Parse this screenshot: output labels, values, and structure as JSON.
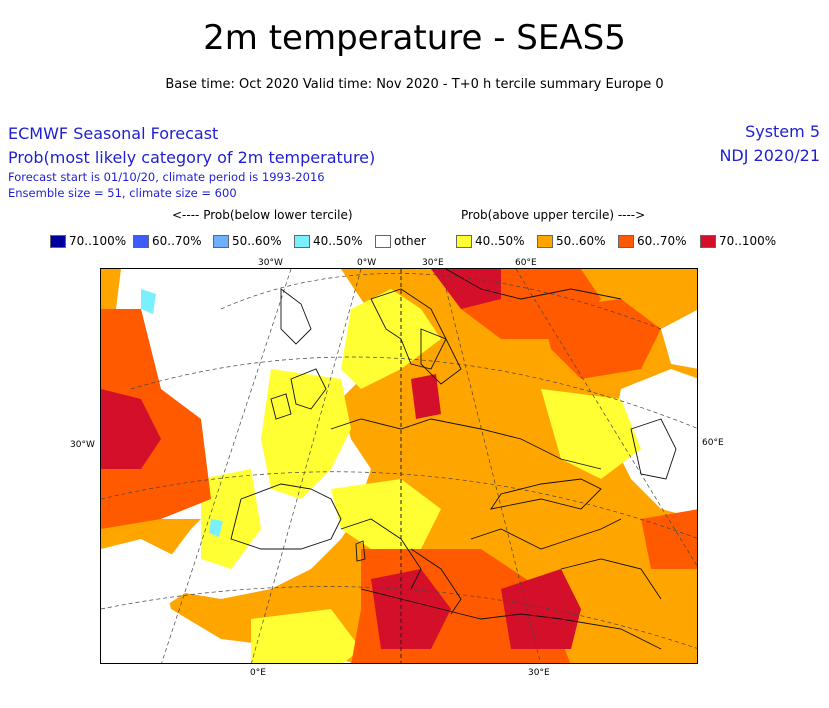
{
  "title": "2m temperature - SEAS5",
  "subtitle": "Base time: Oct 2020 Valid time: Nov 2020 - T+0 h tercile summary Europe 0",
  "header_left": {
    "line1": "ECMWF Seasonal Forecast",
    "line2": "Prob(most likely category of 2m temperature)",
    "line3": "Forecast start is 01/10/20, climate period is 1993-2016",
    "line4": "Ensemble size = 51, climate size = 600"
  },
  "header_right": {
    "system": "System 5",
    "period": "NDJ 2020/21"
  },
  "legend": {
    "below_label": "<---- Prob(below lower tercile)",
    "above_label": "Prob(above upper tercile) ---->",
    "items": [
      {
        "label": "70..100%",
        "color": "#0000a0"
      },
      {
        "label": "60..70%",
        "color": "#3c5cff"
      },
      {
        "label": "50..60%",
        "color": "#6cb0ff"
      },
      {
        "label": "40..50%",
        "color": "#7af0ff"
      },
      {
        "label": "other",
        "color": "#ffffff"
      },
      {
        "label": "40..50%",
        "color": "#ffff33"
      },
      {
        "label": "50..60%",
        "color": "#ffa500"
      },
      {
        "label": "60..70%",
        "color": "#ff5a00"
      },
      {
        "label": "70..100%",
        "color": "#d40f2a"
      }
    ]
  },
  "axis_labels": {
    "top": [
      "30°W",
      "0°W",
      "30°E",
      "60°E"
    ],
    "left": "30°W",
    "right": "60°E",
    "bottom": [
      "0°E",
      "30°E"
    ]
  }
}
